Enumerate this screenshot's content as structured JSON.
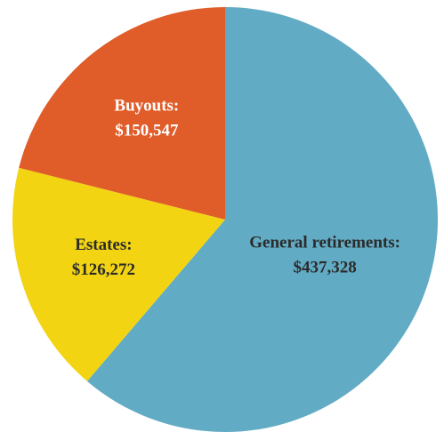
{
  "chart_data": {
    "type": "pie",
    "categories": [
      "General retirements:",
      "Estates:",
      "Buyouts:"
    ],
    "values": [
      437328,
      126272,
      150547
    ],
    "value_labels": [
      "$437,328",
      "$126,272",
      "$150,547"
    ],
    "colors": [
      "#62abc4",
      "#f2d413",
      "#e05c28"
    ]
  }
}
